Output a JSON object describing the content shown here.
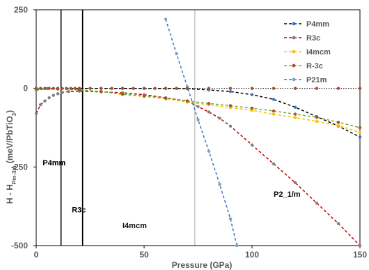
{
  "chart_data": {
    "type": "line",
    "xlabel": "Pressure (GPa)",
    "ylabel": "H - H",
    "ylabel_sub": "Pm-3m",
    "ylabel_rest": " (meV/PbTiO",
    "ylabel_sub2": "3",
    "ylabel_end": ")",
    "xlim": [
      0,
      150
    ],
    "ylim": [
      -500,
      250
    ],
    "x_ticks": [
      0,
      50,
      100,
      150
    ],
    "y_ticks": [
      250,
      0,
      -250,
      -500
    ],
    "y_tick_labels": [
      "250",
      "0",
      "-250",
      "-500"
    ],
    "zero_line": "dotted",
    "boundaries": [
      {
        "x": 11.5,
        "style": "solid-black"
      },
      {
        "x": 21.5,
        "style": "solid-black"
      },
      {
        "x": 73.5,
        "style": "thin-gray"
      }
    ],
    "region_labels": [
      {
        "text": "P4mm",
        "x": 3,
        "y": -245
      },
      {
        "text": "R3c",
        "x": 16.5,
        "y": -395
      },
      {
        "text": "I4mcm",
        "x": 40,
        "y": -445
      },
      {
        "text": "P2_1/m",
        "x": 110,
        "y": -345
      }
    ],
    "legend_position": "top-right",
    "series": [
      {
        "name": "P4mm",
        "color": "#000000",
        "marker_color": "#4472c4",
        "x": [
          0,
          5,
          10,
          20,
          30,
          40,
          50,
          60,
          70,
          80,
          90,
          100,
          110,
          120,
          130,
          140,
          150
        ],
        "y": [
          -5,
          -1,
          0,
          0,
          0,
          0,
          0,
          0,
          -1,
          -5,
          -10,
          -20,
          -35,
          -60,
          -90,
          -120,
          -155
        ]
      },
      {
        "name": "R3c",
        "color": "#c00000",
        "marker_color": "#808080",
        "x": [
          0,
          2,
          4,
          6,
          8,
          10,
          12,
          15,
          20,
          30,
          40,
          50,
          60,
          70,
          75,
          80,
          85,
          90,
          100,
          110,
          120,
          130,
          140,
          150
        ],
        "y": [
          -80,
          -52,
          -40,
          -30,
          -22,
          -17,
          -13,
          -10,
          -9,
          -11,
          -14,
          -20,
          -30,
          -40,
          -58,
          -75,
          -95,
          -120,
          -180,
          -240,
          -300,
          -365,
          -430,
          -500
        ]
      },
      {
        "name": "I4mcm",
        "color": "#ffc000",
        "marker_color": "#ffc000",
        "x": [
          0,
          10,
          20,
          30,
          40,
          50,
          60,
          70,
          80,
          90,
          100,
          110,
          120,
          130,
          140,
          150
        ],
        "y": [
          -2,
          -2,
          -5,
          -10,
          -20,
          -26,
          -33,
          -44,
          -52,
          -61,
          -70,
          -82,
          -93,
          -105,
          -118,
          -140
        ]
      },
      {
        "name": "R-3c",
        "color": "#70ad47",
        "marker_color": "#a0522d",
        "x": [
          0,
          10,
          20,
          30,
          40,
          50,
          60,
          70,
          80,
          90,
          100,
          110,
          120,
          130,
          140,
          150
        ],
        "y": [
          -1,
          -2,
          -5,
          -10,
          -18,
          -24,
          -31,
          -40,
          -48,
          -55,
          -63,
          -72,
          -82,
          -92,
          -108,
          -125
        ]
      },
      {
        "name": "P21m",
        "color": "#4472c4",
        "marker_color": "#7f9fbf",
        "x": [
          60,
          65,
          70,
          75,
          80,
          85,
          90,
          93
        ],
        "y": [
          220,
          110,
          5,
          -100,
          -200,
          -305,
          -415,
          -500
        ]
      },
      {
        "name": "",
        "color": "#000000",
        "line": "none",
        "marker_color": "#a0522d",
        "x": [
          0,
          2,
          4,
          6,
          8,
          10,
          12,
          14,
          16,
          18,
          20,
          25,
          30,
          35,
          40,
          45,
          50,
          55,
          60,
          65,
          70,
          80,
          90,
          100,
          110,
          120,
          130,
          140,
          150
        ],
        "y": [
          0,
          0,
          0,
          0,
          0,
          0,
          0,
          0,
          0,
          0,
          0,
          0,
          0,
          0,
          0,
          0,
          0,
          0,
          0,
          0,
          0,
          0,
          0,
          0,
          0,
          0,
          0,
          0,
          0
        ]
      }
    ]
  }
}
